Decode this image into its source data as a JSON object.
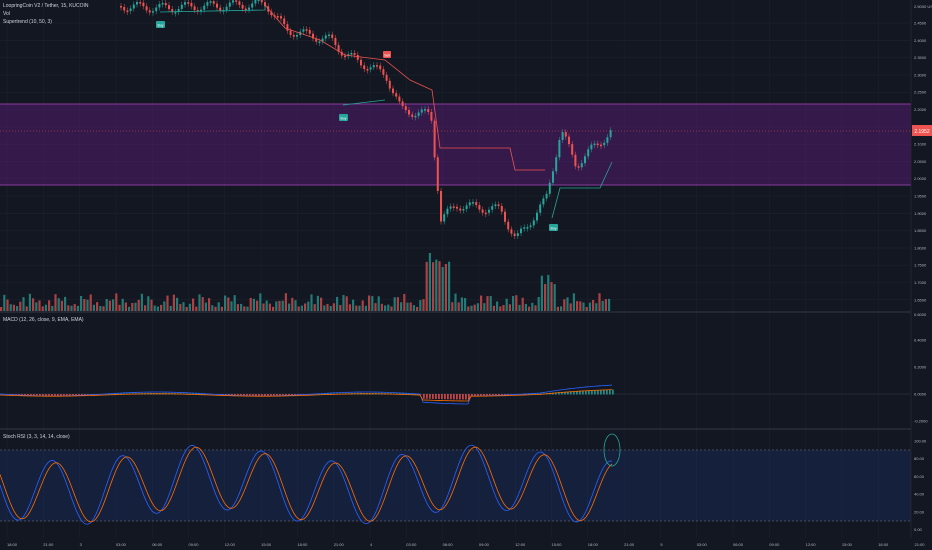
{
  "legend": {
    "symbol": "LoopringCoin V2 / Tether, 15, KUCOIN",
    "volume": "Vol",
    "supertrend": "Supertrend (10, 50, 3)",
    "macd": "MACD (12, 26, close, 9, EMA, EMA)",
    "stoch": "Stoch RSI (3, 3, 14, 14, close)"
  },
  "price_axis": {
    "currency": "USDT",
    "ticks": [
      "2.4500",
      "2.4000",
      "2.3500",
      "2.3000",
      "2.2500",
      "2.2000",
      "2.1500",
      "2.1000",
      "2.0500",
      "2.0000",
      "1.9500",
      "1.9000",
      "1.8500",
      "1.8000",
      "1.7500",
      "1.7000",
      "1.6500"
    ],
    "current_price": "2.1952",
    "top_tick": "2.5000"
  },
  "macd_axis": {
    "ticks": [
      "0.4000",
      "0.2000",
      "0.0000",
      "-0.2000"
    ],
    "top": "0.6000"
  },
  "stoch_axis": {
    "ticks": [
      "100.00",
      "80.00",
      "60.00",
      "40.00",
      "20.00",
      "0.00"
    ]
  },
  "time_axis": [
    "18:00",
    "21:00",
    "3",
    "03:00",
    "06:00",
    "09:00",
    "12:00",
    "15:00",
    "18:00",
    "21:00",
    "4",
    "03:00",
    "06:00",
    "09:00",
    "12:00",
    "15:00",
    "18:00",
    "21:00",
    "5",
    "03:00",
    "06:00",
    "09:00",
    "12:00",
    "15:00",
    "18:00",
    "21:00"
  ],
  "signals": {
    "buy": "Buy",
    "sell": "Sell"
  },
  "colors": {
    "up": "#26a69a",
    "down": "#ef5350",
    "zone": "#9c27b0",
    "macd": "#2962ff",
    "signal": "#ff6d00",
    "stoch_k": "#2962ff",
    "stoch_d": "#ff6d00"
  }
}
